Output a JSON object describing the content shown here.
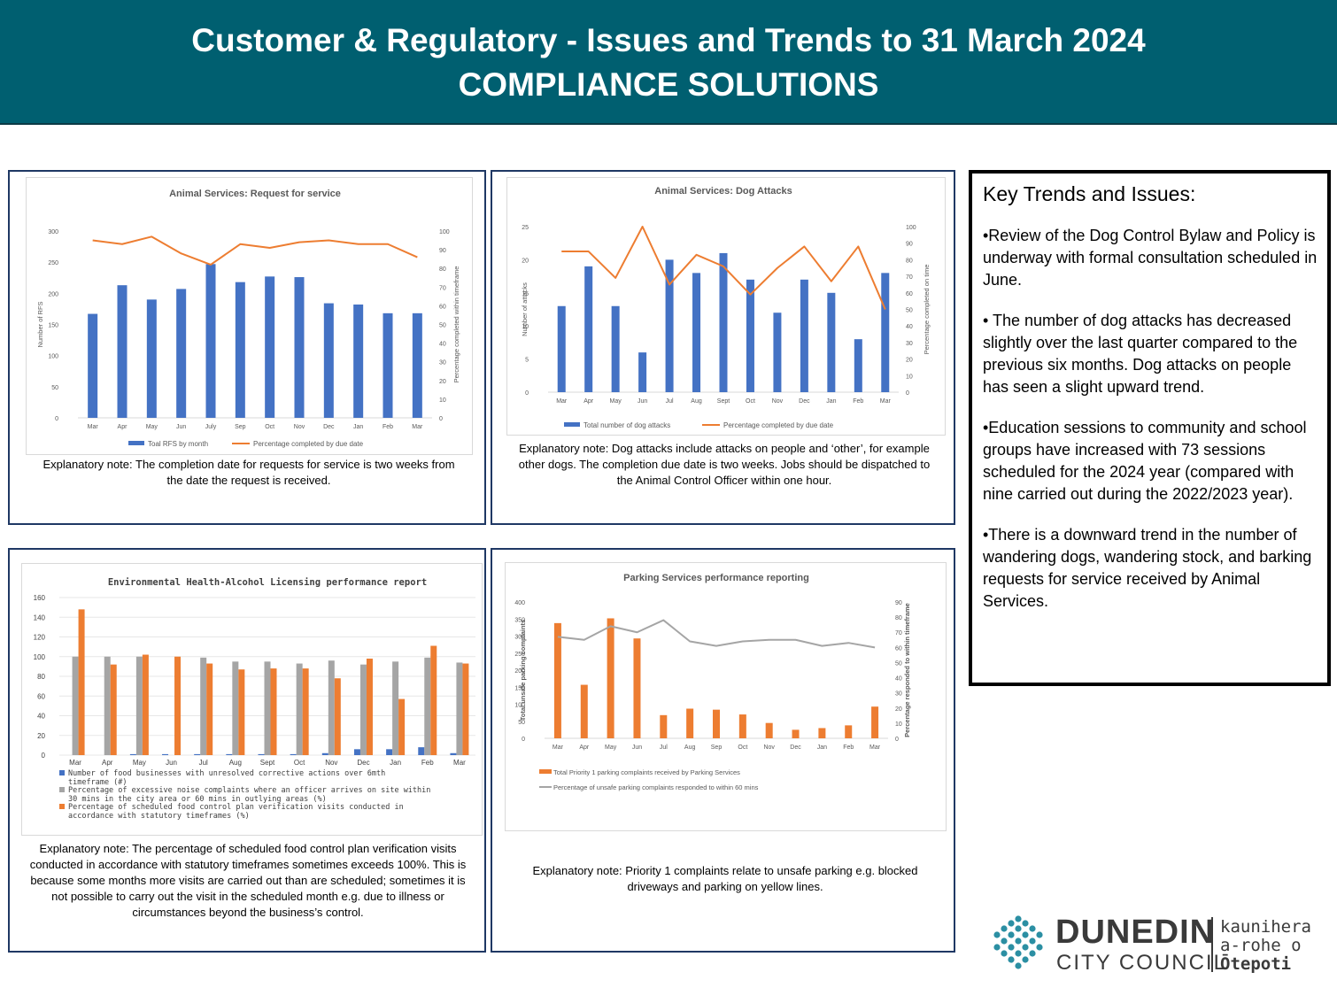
{
  "header": {
    "title": "Customer & Regulatory - Issues and Trends to 31 March 2024",
    "subtitle": "COMPLIANCE SOLUTIONS"
  },
  "notes": {
    "rfs": "Explanatory note: The completion date for requests for service is two weeks from the date the request is received.",
    "dog": "Explanatory note: Dog attacks include attacks on people and ‘other’, for example other dogs. The completion due date is two weeks.  Jobs should be dispatched to the Animal Control Officer within one hour.",
    "env": [
      "Explanatory note: The percentage of scheduled food control plan verification visits conducted in accordance with statutory timeframes sometimes exceeds 100%. This is because some months more visits are carried out than are scheduled; sometimes it is not possible to carry out the visit in the scheduled month e.g. due to illness or",
      "circumstances beyond the business’s control."
    ],
    "parking": "Explanatory note: Priority 1 complaints relate to unsafe parking e.g. blocked driveways and parking on yellow lines."
  },
  "key_trends": {
    "title": "Key Trends and Issues:",
    "p1": "•Review of the Dog Control Bylaw and Policy is underway with formal consultation scheduled in June.",
    "p2a": "• The number of dog attacks has decreased slightly over the last quarter compared to the previous six months. ",
    "p2b": "Dog attacks on people has seen a slight upward trend.",
    "p3": "•Education sessions to community and school groups have increased with 73 sessions scheduled for the 2024 year (compared with nine carried out during the 2022/2023 year).",
    "p4": "•There is a downward trend in the number of wandering dogs, wandering stock, and barking requests for service received by Animal Services."
  },
  "logo": {
    "name1": "DUNEDIN",
    "name2": "CITY COUNCIL",
    "maori1": "kaunihera",
    "maori2": "a-rohe o",
    "maori3": "Ōtepoti"
  },
  "colors": {
    "banner": "#005F70",
    "blue": "#4472C4",
    "orange": "#ED7D31",
    "gray": "#A5A5A5",
    "panel_border": "#1F3864"
  },
  "chart_data": [
    {
      "type": "bar",
      "title": "Animal Services: Request for service",
      "categories": [
        "Mar",
        "Apr",
        "May",
        "Jun",
        "July",
        "Sep",
        "Oct",
        "Nov",
        "Dec",
        "Jan",
        "Feb",
        "Mar"
      ],
      "series": [
        {
          "name": "Toal RFS by month",
          "type": "bar",
          "axis": "left",
          "values": [
            167,
            213,
            190,
            207,
            247,
            218,
            227,
            226,
            184,
            182,
            168,
            168
          ]
        },
        {
          "name": "Percentage completed by due date",
          "type": "line",
          "axis": "right",
          "values": [
            95,
            93,
            97,
            88,
            82,
            93,
            91,
            94,
            95,
            93,
            93,
            86
          ]
        }
      ],
      "ylabel": "Number of RFS",
      "y2label": "Percentage completed within timeframe",
      "ylim": [
        0,
        300
      ],
      "yticks": [
        0,
        50,
        100,
        150,
        200,
        250,
        300
      ],
      "y2lim": [
        0,
        100
      ],
      "y2ticks": [
        0,
        10,
        20,
        30,
        40,
        50,
        60,
        70,
        80,
        90,
        100
      ],
      "legend": "bottom"
    },
    {
      "type": "bar",
      "title": "Animal Services: Dog Attacks",
      "categories": [
        "Mar",
        "Apr",
        "May",
        "Jun",
        "Jul",
        "Aug",
        "Sept",
        "Oct",
        "Nov",
        "Dec",
        "Jan",
        "Feb",
        "Mar"
      ],
      "series": [
        {
          "name": "Total number of dog attacks",
          "type": "bar",
          "axis": "left",
          "values": [
            13,
            19,
            13,
            6,
            20,
            18,
            21,
            17,
            12,
            17,
            15,
            8,
            18
          ]
        },
        {
          "name": "Percentage completed by due date",
          "type": "line",
          "axis": "right",
          "values": [
            85,
            85,
            69,
            100,
            65,
            83,
            76,
            59,
            75,
            88,
            67,
            88,
            50
          ]
        }
      ],
      "ylabel": "Number of attacks",
      "y2label": "Percentage completed on time",
      "ylim": [
        0,
        25
      ],
      "yticks": [
        0,
        5,
        10,
        15,
        20,
        25
      ],
      "y2lim": [
        0,
        100
      ],
      "y2ticks": [
        0,
        10,
        20,
        30,
        40,
        50,
        60,
        70,
        80,
        90,
        100
      ],
      "legend": "bottom"
    },
    {
      "type": "bar",
      "title": "Environmental Health-Alcohol Licensing performance report",
      "categories": [
        "Mar",
        "Apr",
        "May",
        "Jun",
        "Jul",
        "Aug",
        "Sept",
        "Oct",
        "Nov",
        "Dec",
        "Jan",
        "Feb",
        "Mar"
      ],
      "series": [
        {
          "name": "Number of food businesses with unresolved corrective actions over 6mth timeframe (#)",
          "values": [
            0,
            0,
            1,
            1,
            1,
            1,
            1,
            1,
            2,
            6,
            6,
            8,
            2
          ]
        },
        {
          "name": "Percentage of excessive noise complaints where an officer arrives on site within 30 mins in the city area or 60 mins in outlying areas (%)",
          "values": [
            100,
            100,
            100,
            0,
            99,
            95,
            95,
            93,
            96,
            92,
            95,
            99,
            94
          ]
        },
        {
          "name": "Percentage of scheduled food control plan verification visits conducted in accordance with statutory timeframes (%)",
          "values": [
            148,
            92,
            102,
            100,
            93,
            87,
            88,
            88,
            78,
            98,
            57,
            111,
            93
          ]
        }
      ],
      "ylim": [
        0,
        160
      ],
      "yticks": [
        0,
        20,
        40,
        60,
        80,
        100,
        120,
        140,
        160
      ],
      "legend": "bottom"
    },
    {
      "type": "bar",
      "title": "Parking Services performance reporting",
      "categories": [
        "Mar",
        "Apr",
        "May",
        "Jun",
        "Jul",
        "Aug",
        "Sep",
        "Oct",
        "Nov",
        "Dec",
        "Jan",
        "Feb",
        "Mar"
      ],
      "series": [
        {
          "name": "Total Priority 1 parking complaints received by Parking Services",
          "type": "bar",
          "axis": "left",
          "values": [
            338,
            157,
            352,
            293,
            68,
            87,
            84,
            70,
            45,
            25,
            30,
            38,
            93
          ]
        },
        {
          "name": "Percentage of unsafe parking complaints responded to within 60 mins",
          "type": "line",
          "axis": "right",
          "values": [
            67,
            65,
            74,
            70,
            78,
            64,
            61,
            64,
            65,
            65,
            61,
            63,
            60
          ]
        }
      ],
      "ylabel": "Total unsafe parking complaints",
      "y2label": "Percentage responded to within timeframe",
      "ylim": [
        0,
        400
      ],
      "yticks": [
        0,
        50,
        100,
        150,
        200,
        250,
        300,
        350,
        400
      ],
      "y2lim": [
        0,
        90
      ],
      "y2ticks": [
        0,
        10,
        20,
        30,
        40,
        50,
        60,
        70,
        80,
        90
      ],
      "legend": "bottom"
    }
  ]
}
